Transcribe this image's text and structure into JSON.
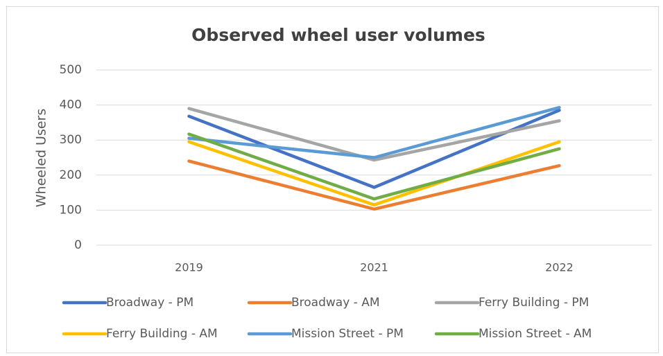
{
  "chart_data": {
    "type": "line",
    "title": "Observed wheel user volumes",
    "y_label": "Wheeled Users",
    "categories": [
      "2019",
      "2021",
      "2022"
    ],
    "series": [
      {
        "name": "Broadway - PM",
        "color": "#4472c4",
        "values": [
          368,
          165,
          385
        ]
      },
      {
        "name": "Broadway - AM",
        "color": "#ed7d31",
        "values": [
          240,
          103,
          227
        ]
      },
      {
        "name": "Ferry Building - PM",
        "color": "#a5a5a5",
        "values": [
          390,
          243,
          355
        ]
      },
      {
        "name": "Ferry Building - AM",
        "color": "#ffc000",
        "values": [
          295,
          115,
          295
        ]
      },
      {
        "name": "Mission Street - PM",
        "color": "#5b9bd5",
        "values": [
          305,
          250,
          393
        ]
      },
      {
        "name": "Mission Street - AM",
        "color": "#70ad47",
        "values": [
          317,
          132,
          275
        ]
      }
    ],
    "ylim": [
      0,
      500
    ],
    "yticks": [
      0,
      100,
      200,
      300,
      400,
      500
    ],
    "grid": true,
    "legend": "bottom"
  }
}
